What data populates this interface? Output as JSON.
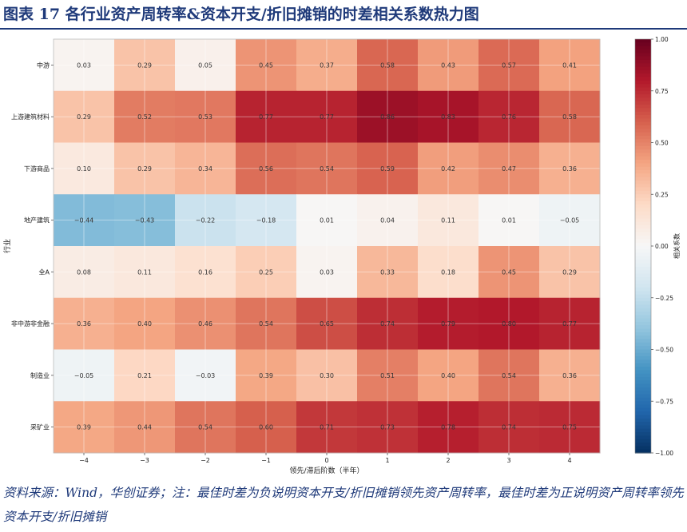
{
  "figure": {
    "title": "图表 17    各行业资产周转率&资本开支/折旧摊销的时差相关系数热力图",
    "source": "资料来源：Wind，华创证券；注：最佳时差为负说明资本开支/折旧摊销领先资产周转率，最佳时差为正说明资产周转率领先资本开支/折旧摊销"
  },
  "chart_data": {
    "type": "heatmap",
    "title": "",
    "xlabel": "领先/滞后阶数（半年）",
    "ylabel": "行业",
    "x": [
      "−4",
      "−3",
      "−2",
      "−1",
      "0",
      "1",
      "2",
      "3",
      "4"
    ],
    "y": [
      "中游",
      "上游建筑材料",
      "下游商品",
      "地产建筑",
      "全A",
      "非中游非金融",
      "制造业",
      "采矿业"
    ],
    "values": [
      [
        0.03,
        0.29,
        0.05,
        0.45,
        0.37,
        0.58,
        0.43,
        0.57,
        0.41
      ],
      [
        0.29,
        0.52,
        0.53,
        0.77,
        0.77,
        0.86,
        0.83,
        0.76,
        0.58
      ],
      [
        0.1,
        0.29,
        0.34,
        0.56,
        0.54,
        0.59,
        0.42,
        0.47,
        0.36
      ],
      [
        -0.44,
        -0.43,
        -0.22,
        -0.18,
        0.01,
        0.04,
        0.11,
        0.01,
        -0.05
      ],
      [
        0.08,
        0.11,
        0.16,
        0.25,
        0.03,
        0.33,
        0.18,
        0.45,
        0.29
      ],
      [
        0.36,
        0.4,
        0.46,
        0.54,
        0.65,
        0.74,
        0.79,
        0.8,
        0.77
      ],
      [
        -0.05,
        0.21,
        -0.03,
        0.39,
        0.3,
        0.51,
        0.4,
        0.54,
        0.36
      ],
      [
        0.39,
        0.44,
        0.54,
        0.6,
        0.71,
        0.73,
        0.78,
        0.74,
        0.75
      ]
    ],
    "value_labels": [
      [
        "0.03",
        "0.29",
        "0.05",
        "0.45",
        "0.37",
        "0.58",
        "0.43",
        "0.57",
        "0.41"
      ],
      [
        "0.29",
        "0.52",
        "0.53",
        "0.77",
        "0.77",
        "0.86",
        "0.83",
        "0.76",
        "0.58"
      ],
      [
        "0.10",
        "0.29",
        "0.34",
        "0.56",
        "0.54",
        "0.59",
        "0.42",
        "0.47",
        "0.36"
      ],
      [
        "−0.44",
        "−0.43",
        "−0.22",
        "−0.18",
        "0.01",
        "0.04",
        "0.11",
        "0.01",
        "−0.05"
      ],
      [
        "0.08",
        "0.11",
        "0.16",
        "0.25",
        "0.03",
        "0.33",
        "0.18",
        "0.45",
        "0.29"
      ],
      [
        "0.36",
        "0.40",
        "0.46",
        "0.54",
        "0.65",
        "0.74",
        "0.79",
        "0.80",
        "0.77"
      ],
      [
        "−0.05",
        "0.21",
        "−0.03",
        "0.39",
        "0.30",
        "0.51",
        "0.40",
        "0.54",
        "0.36"
      ],
      [
        "0.39",
        "0.44",
        "0.54",
        "0.60",
        "0.71",
        "0.73",
        "0.78",
        "0.74",
        "0.75"
      ]
    ],
    "colorbar": {
      "label": "相关系数",
      "range": [
        -1,
        1
      ],
      "ticks": [
        1,
        0.75,
        0.5,
        0.25,
        0,
        -0.25,
        -0.5,
        -0.75,
        -1
      ],
      "tick_labels": [
        "1.00",
        "0.75",
        "0.50",
        "0.25",
        "0.00",
        "−0.25",
        "−0.50",
        "−0.75",
        "−1.00"
      ],
      "colormap": "RdBu_r",
      "colors": [
        "#053061",
        "#2166ac",
        "#4393c3",
        "#92c5de",
        "#d1e5f0",
        "#f7f7f7",
        "#fddbc7",
        "#f4a582",
        "#d6604d",
        "#b2182b",
        "#67001f"
      ]
    },
    "grid": true,
    "title_color": "#1f3a7a"
  }
}
